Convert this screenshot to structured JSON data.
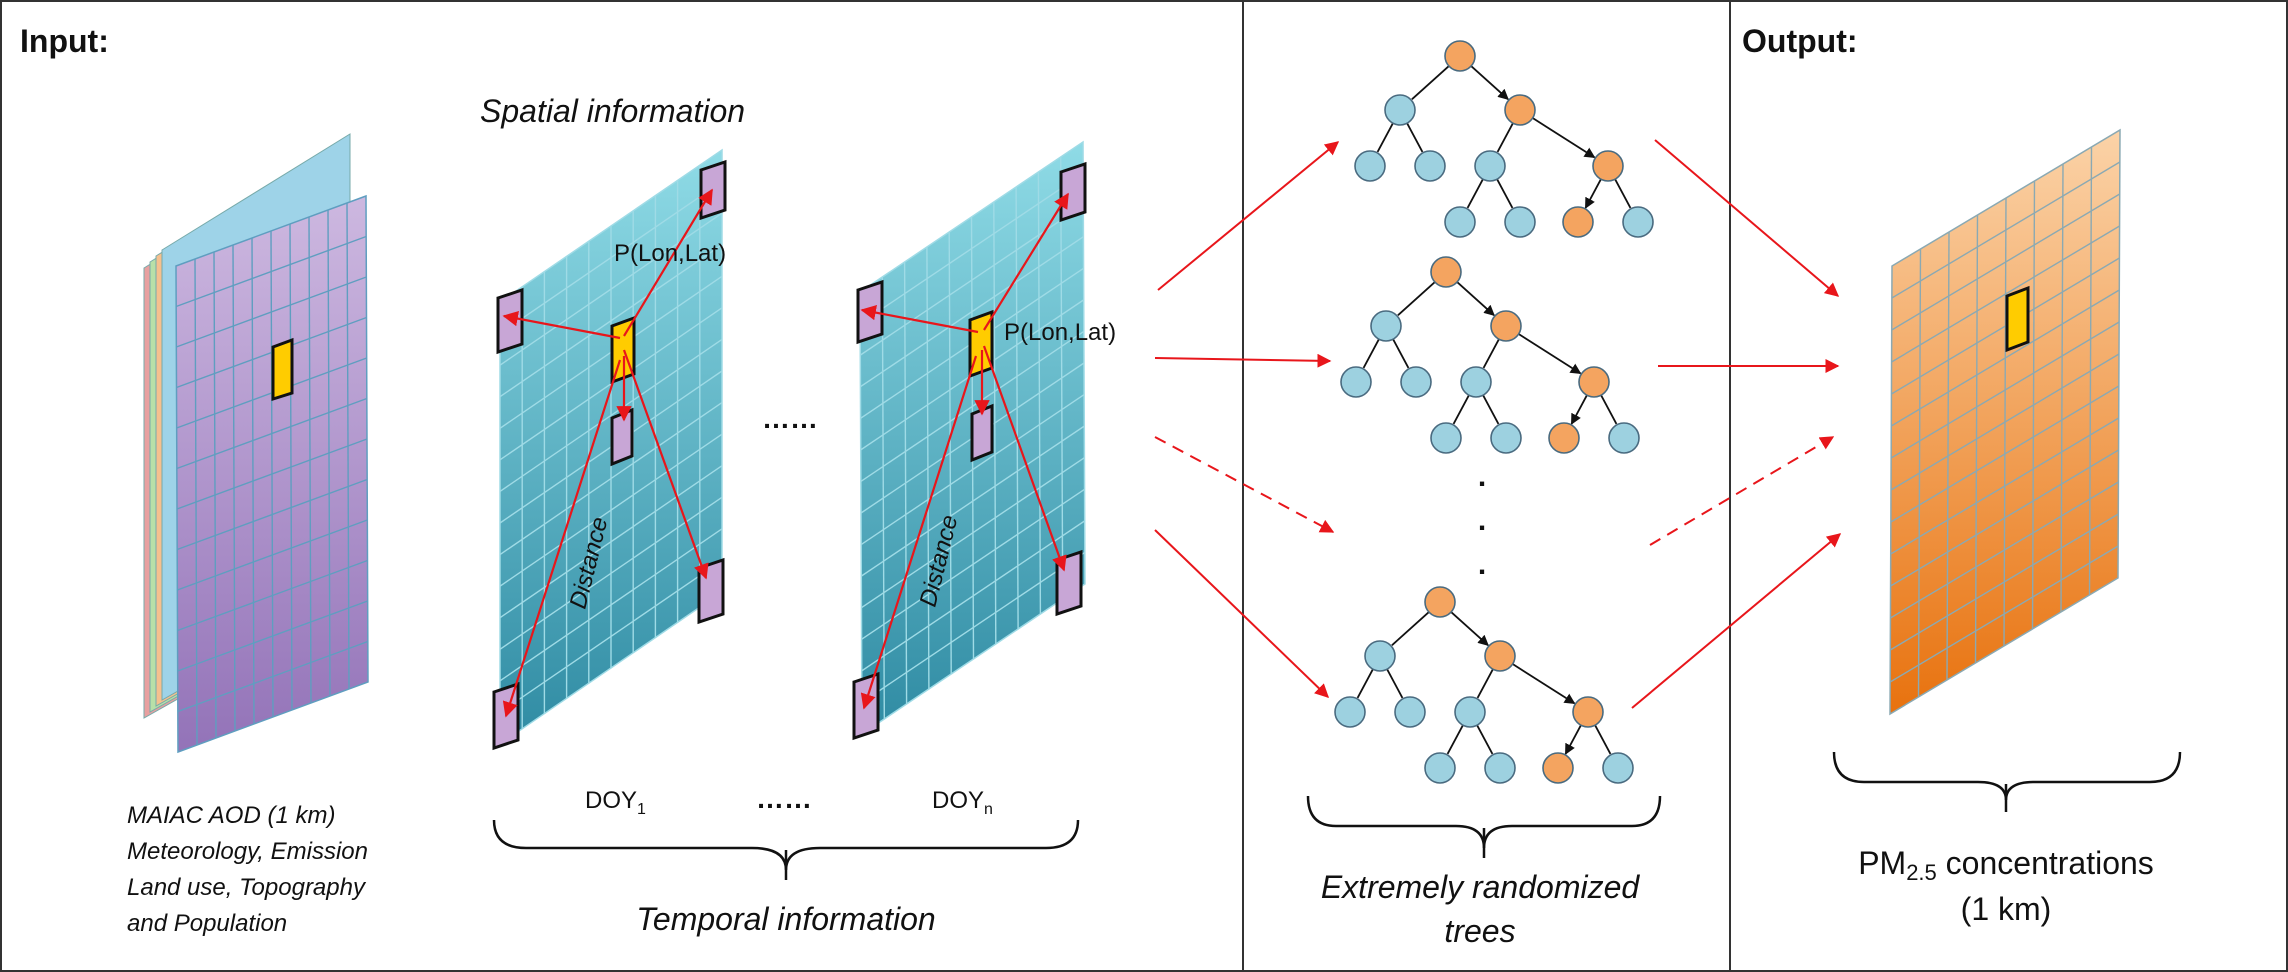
{
  "panels": {
    "input_title": "Input:",
    "output_title": "Output:"
  },
  "input": {
    "spatial_information": "Spatial information",
    "point_label": "P(Lon,Lat)",
    "distance_label": "Distance",
    "ellipsis": "……",
    "doy_base": "DOY",
    "doy_first_sub": "1",
    "doy_last_sub": "n",
    "temporal_information": "Temporal information",
    "variables": [
      "MAIAC AOD (1 km)",
      "Meteorology, Emission",
      "Land use, Topography",
      "and Population"
    ]
  },
  "model": {
    "dots": ".",
    "caption_line1": "Extremely randomized",
    "caption_line2": "trees"
  },
  "output": {
    "caption_pm": "PM",
    "caption_sub": "2.5",
    "caption_rest": " concentrations",
    "caption_line2": "(1 km)"
  },
  "colors": {
    "border": "#333333",
    "arrow": "#e8161b",
    "node_orange": "#f4a460",
    "node_blue": "#9dd1e0",
    "highlight_cell": "#ffcc00",
    "purple_cell": "#c8a6d6"
  }
}
